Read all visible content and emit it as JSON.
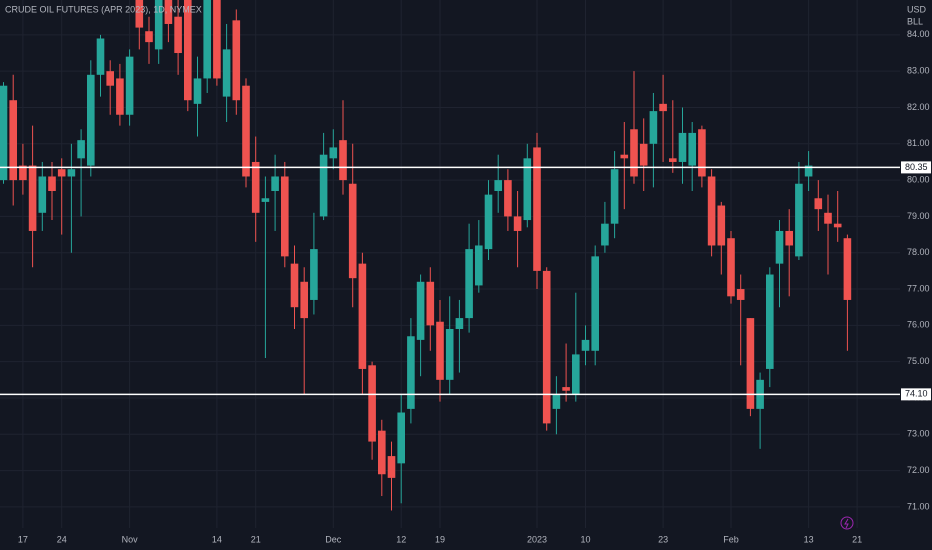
{
  "chart_data": {
    "type": "candlestick",
    "title": "CRUDE OIL FUTURES (APR 2023), 1D, NYMEX",
    "currency": "USD",
    "unit": "BLL",
    "up_color": "#26a69a",
    "down_color": "#ef5350",
    "grid": true,
    "categories": [
      null,
      null,
      "17",
      null,
      null,
      null,
      "24",
      null,
      null,
      null,
      null,
      null,
      null,
      "Nov",
      null,
      null,
      null,
      null,
      null,
      null,
      null,
      null,
      "14",
      null,
      null,
      null,
      "21",
      null,
      null,
      null,
      null,
      null,
      null,
      null,
      "Dec",
      null,
      null,
      null,
      null,
      null,
      null,
      "12",
      null,
      null,
      null,
      "19",
      null,
      null,
      null,
      null,
      null,
      null,
      null,
      null,
      null,
      "2023",
      null,
      null,
      null,
      null,
      "10",
      null,
      null,
      null,
      null,
      null,
      null,
      null,
      "23",
      null,
      null,
      null,
      null,
      null,
      null,
      "Feb",
      null,
      null,
      null,
      null,
      null,
      null,
      null,
      "13",
      null,
      null,
      null,
      null,
      "21"
    ],
    "open": [
      80.0,
      82.2,
      80.4,
      80.4,
      79.1,
      80.1,
      80.3,
      80.1,
      80.6,
      80.4,
      82.9,
      83.0,
      82.8,
      81.8,
      85.1,
      84.1,
      83.6,
      85.3,
      84.5,
      85.0,
      82.1,
      82.8,
      85.2,
      82.3,
      84.4,
      82.6,
      80.5,
      79.4,
      79.7,
      80.1,
      77.7,
      77.2,
      76.7,
      79.0,
      80.6,
      81.1,
      79.9,
      77.7,
      74.9,
      73.1,
      72.4,
      72.2,
      73.7,
      75.6,
      77.2,
      76.1,
      74.5,
      75.9,
      76.2,
      77.1,
      78.1,
      79.7,
      80.0,
      79.0,
      78.9,
      80.9,
      77.5,
      73.7,
      74.3,
      74.1,
      75.3,
      75.3,
      78.2,
      78.8,
      80.7,
      81.4,
      81.0,
      81.0,
      82.1,
      80.6,
      80.5,
      80.4,
      81.4,
      80.1,
      79.3,
      78.4,
      77.0,
      76.2,
      73.7,
      74.8,
      77.7,
      78.6,
      77.9,
      80.1,
      79.5,
      79.1,
      78.8,
      78.4,
      null
    ],
    "high": [
      82.7,
      82.9,
      81.0,
      81.5,
      80.5,
      80.5,
      80.6,
      81.0,
      81.4,
      83.3,
      84.0,
      83.3,
      83.2,
      83.6,
      85.3,
      84.5,
      85.5,
      85.6,
      85.0,
      85.5,
      83.4,
      85.4,
      85.6,
      84.3,
      84.7,
      82.8,
      81.2,
      80.1,
      80.7,
      80.5,
      78.2,
      77.6,
      79.1,
      81.3,
      81.4,
      82.2,
      81.0,
      78.0,
      75.0,
      73.4,
      72.8,
      74.1,
      76.2,
      77.4,
      77.6,
      76.7,
      76.8,
      76.7,
      78.8,
      78.9,
      80.0,
      80.7,
      80.3,
      79.7,
      81.0,
      81.3,
      77.6,
      74.6,
      75.5,
      76.9,
      76.0,
      78.2,
      79.4,
      80.8,
      81.6,
      83.0,
      81.7,
      82.4,
      82.9,
      82.2,
      82.0,
      81.6,
      81.5,
      80.3,
      79.4,
      78.6,
      77.4,
      76.2,
      74.7,
      77.6,
      78.9,
      79.2,
      80.5,
      80.8,
      80.0,
      79.6,
      79.7,
      78.5,
      null
    ],
    "low": [
      79.9,
      79.3,
      79.6,
      77.6,
      78.6,
      78.9,
      78.5,
      78.0,
      79.0,
      80.1,
      82.3,
      81.8,
      81.5,
      81.5,
      83.6,
      83.2,
      83.2,
      83.8,
      82.9,
      81.9,
      81.2,
      82.4,
      82.6,
      81.6,
      81.8,
      79.8,
      78.3,
      75.1,
      78.6,
      77.6,
      75.9,
      74.1,
      76.3,
      78.9,
      80.3,
      79.6,
      76.5,
      74.1,
      72.3,
      71.3,
      70.9,
      71.1,
      73.3,
      74.6,
      75.3,
      73.9,
      74.1,
      74.7,
      75.8,
      76.9,
      77.8,
      79.1,
      78.6,
      77.6,
      78.7,
      77.0,
      73.1,
      73.0,
      73.9,
      73.9,
      74.9,
      74.9,
      78.0,
      78.4,
      79.2,
      79.9,
      79.7,
      79.8,
      80.5,
      80.2,
      79.9,
      79.7,
      79.8,
      77.9,
      77.4,
      76.6,
      74.9,
      73.5,
      72.6,
      74.3,
      76.5,
      76.8,
      77.8,
      79.7,
      78.6,
      77.4,
      78.3,
      75.3,
      null
    ],
    "close": [
      82.6,
      80.0,
      80.0,
      78.6,
      80.1,
      79.7,
      80.1,
      80.3,
      81.1,
      82.9,
      83.9,
      82.6,
      81.8,
      83.4,
      84.2,
      83.8,
      85.0,
      84.3,
      83.5,
      82.2,
      82.8,
      85.1,
      82.8,
      83.6,
      82.2,
      80.1,
      79.1,
      79.5,
      80.1,
      77.9,
      76.5,
      76.2,
      78.1,
      80.7,
      80.9,
      80.0,
      77.3,
      74.8,
      72.8,
      71.9,
      71.8,
      73.6,
      75.7,
      77.2,
      76.0,
      74.5,
      75.9,
      76.2,
      78.1,
      78.2,
      79.6,
      80.0,
      79.0,
      78.6,
      80.6,
      77.5,
      73.3,
      74.1,
      74.2,
      75.2,
      75.6,
      77.9,
      78.8,
      80.3,
      80.6,
      80.1,
      80.4,
      81.9,
      81.9,
      80.5,
      81.3,
      81.3,
      80.1,
      78.2,
      78.2,
      76.8,
      76.7,
      73.7,
      74.5,
      77.4,
      78.6,
      78.2,
      79.9,
      80.4,
      79.2,
      78.8,
      78.7,
      76.7,
      null
    ],
    "levels": [
      {
        "value": 80.35,
        "label": "80.35"
      },
      {
        "value": 74.1,
        "label": "74.10"
      }
    ],
    "ylim": [
      70.64,
      84.96
    ],
    "yticks": [
      {
        "value": 84,
        "label": "84.00"
      },
      {
        "value": 83,
        "label": "83.00"
      },
      {
        "value": 82,
        "label": "82.00"
      },
      {
        "value": 81,
        "label": "81.00"
      },
      {
        "value": 80,
        "label": "80.00"
      },
      {
        "value": 79,
        "label": "79.00"
      },
      {
        "value": 78,
        "label": "78.00"
      },
      {
        "value": 77,
        "label": "77.00"
      },
      {
        "value": 76,
        "label": "76.00"
      },
      {
        "value": 75,
        "label": "75.00"
      },
      {
        "value": 74,
        "label": "74.00"
      },
      {
        "value": 73,
        "label": "73.00"
      },
      {
        "value": 72,
        "label": "72.00"
      },
      {
        "value": 71,
        "label": "71.00"
      }
    ]
  }
}
